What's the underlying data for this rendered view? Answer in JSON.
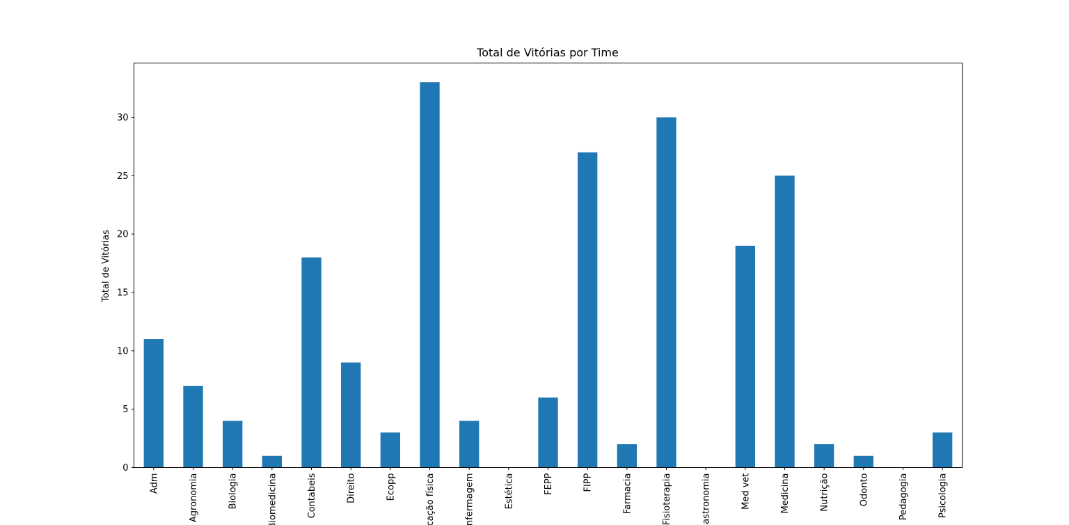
{
  "chart_data": {
    "type": "bar",
    "title": "Total de Vitórias por Time",
    "xlabel": "",
    "ylabel": "Total de Vitórias",
    "categories": [
      "Adm",
      "Agronomia",
      "Biologia",
      "Biomedicina",
      "Contabeis",
      "Direito",
      "Ecopp",
      "Educação física",
      "Enfermagem",
      "Estética",
      "FEPP",
      "FIPP",
      "Farmacia",
      "Fisioterapia",
      "Gastronomia",
      "Med vet",
      "Medicina",
      "Nutrição",
      "Odonto",
      "Pedagogia",
      "Psicologia"
    ],
    "values": [
      11,
      7,
      4,
      1,
      18,
      9,
      3,
      33,
      4,
      0,
      6,
      27,
      2,
      30,
      0,
      19,
      25,
      2,
      1,
      0,
      3
    ],
    "yticks": [
      0,
      5,
      10,
      15,
      20,
      25,
      30
    ],
    "ylim": [
      0,
      34.65
    ],
    "grid": false,
    "legend": "none",
    "colors": {
      "bar": "#1f77b4",
      "axis": "#000000",
      "background": "#ffffff"
    }
  }
}
